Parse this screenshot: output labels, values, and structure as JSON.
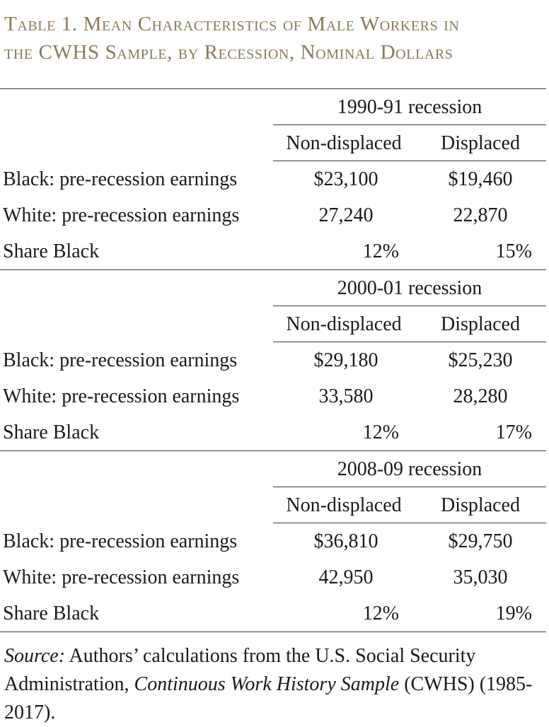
{
  "caption": {
    "line1": "Table 1. Mean Characteristics of Male Workers in",
    "line2": "the CWHS Sample, by Recession, Nominal Dollars"
  },
  "table": {
    "columns": [
      "Non-displaced",
      "Displaced"
    ],
    "sections": [
      {
        "recession": "1990-91 recession",
        "rows": [
          {
            "label": "Black: pre-recession earnings",
            "non_displaced": "$23,100",
            "displaced": "$19,460"
          },
          {
            "label": "White: pre-recession earnings",
            "non_displaced": "27,240",
            "displaced": "22,870"
          },
          {
            "label": "Share Black",
            "non_displaced": "12%",
            "displaced": "15%"
          }
        ]
      },
      {
        "recession": "2000-01 recession",
        "rows": [
          {
            "label": "Black: pre-recession earnings",
            "non_displaced": "$29,180",
            "displaced": "$25,230"
          },
          {
            "label": "White: pre-recession earnings",
            "non_displaced": "33,580",
            "displaced": "28,280"
          },
          {
            "label": "Share Black",
            "non_displaced": "12%",
            "displaced": "17%"
          }
        ]
      },
      {
        "recession": "2008-09 recession",
        "rows": [
          {
            "label": "Black: pre-recession earnings",
            "non_displaced": "$36,810",
            "displaced": "$29,750"
          },
          {
            "label": "White: pre-recession earnings",
            "non_displaced": "42,950",
            "displaced": "35,030"
          },
          {
            "label": "Share Black",
            "non_displaced": "12%",
            "displaced": "19%"
          }
        ]
      }
    ]
  },
  "source": {
    "label": "Source:",
    "text_before": " Authors’ calculations from the U.S. Social Security Administration, ",
    "title": "Continuous Work History Sample",
    "text_after": " (CWHS) (1985-2017)."
  },
  "colors": {
    "caption": "#8a7a5c",
    "text": "#1a1a1a",
    "rule": "#3a3a3a"
  }
}
